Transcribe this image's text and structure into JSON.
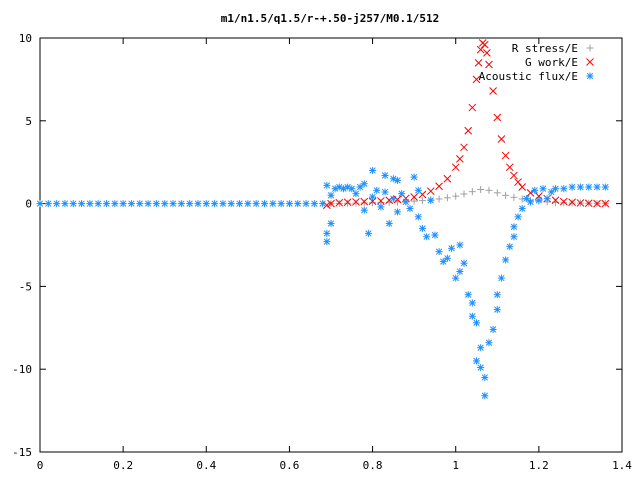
{
  "chart_data": {
    "type": "scatter",
    "title": "m1/n1.5/q1.5/r-+.50-j257/M0.1/512",
    "xlabel": "",
    "ylabel": "",
    "xlim": [
      0,
      1.4
    ],
    "ylim": [
      -15,
      10
    ],
    "x_ticks": [
      "0",
      "0.2",
      "0.4",
      "0.6",
      "0.8",
      "1",
      "1.2",
      "1.4"
    ],
    "y_ticks": [
      "10",
      "5",
      "0",
      "-5",
      "-10",
      "-15"
    ],
    "x_tick_values": [
      0,
      0.2,
      0.4,
      0.6,
      0.8,
      1.0,
      1.2,
      1.4
    ],
    "y_tick_values": [
      10,
      5,
      0,
      -5,
      -10,
      -15
    ],
    "grid": false,
    "legend_position": "top-right",
    "series": [
      {
        "name": "R stress/E",
        "marker": "plus",
        "color": "#a0a0a0",
        "points": [
          [
            0.7,
            0.0
          ],
          [
            0.72,
            0.01
          ],
          [
            0.74,
            0.02
          ],
          [
            0.76,
            0.03
          ],
          [
            0.78,
            0.04
          ],
          [
            0.8,
            0.05
          ],
          [
            0.82,
            0.06
          ],
          [
            0.84,
            0.08
          ],
          [
            0.86,
            0.1
          ],
          [
            0.88,
            0.12
          ],
          [
            0.9,
            0.15
          ],
          [
            0.92,
            0.18
          ],
          [
            0.94,
            0.22
          ],
          [
            0.96,
            0.28
          ],
          [
            0.98,
            0.35
          ],
          [
            1.0,
            0.45
          ],
          [
            1.02,
            0.58
          ],
          [
            1.04,
            0.72
          ],
          [
            1.06,
            0.85
          ],
          [
            1.08,
            0.8
          ],
          [
            1.1,
            0.65
          ],
          [
            1.12,
            0.5
          ],
          [
            1.14,
            0.38
          ],
          [
            1.16,
            0.28
          ],
          [
            1.18,
            0.2
          ],
          [
            1.2,
            0.14
          ],
          [
            1.22,
            0.1
          ],
          [
            1.24,
            0.07
          ],
          [
            1.26,
            0.05
          ],
          [
            1.28,
            0.04
          ],
          [
            1.3,
            0.03
          ],
          [
            1.32,
            0.02
          ],
          [
            1.34,
            0.01
          ],
          [
            1.36,
            0.01
          ]
        ]
      },
      {
        "name": "G work/E",
        "marker": "cross",
        "color": "#ff0000",
        "points": [
          [
            0.69,
            -0.1
          ],
          [
            0.7,
            0.0
          ],
          [
            0.72,
            0.05
          ],
          [
            0.74,
            0.08
          ],
          [
            0.76,
            0.1
          ],
          [
            0.78,
            0.12
          ],
          [
            0.8,
            0.14
          ],
          [
            0.82,
            0.16
          ],
          [
            0.84,
            0.2
          ],
          [
            0.86,
            0.25
          ],
          [
            0.88,
            0.32
          ],
          [
            0.9,
            0.4
          ],
          [
            0.92,
            0.55
          ],
          [
            0.94,
            0.75
          ],
          [
            0.96,
            1.05
          ],
          [
            0.98,
            1.5
          ],
          [
            1.0,
            2.2
          ],
          [
            1.01,
            2.7
          ],
          [
            1.02,
            3.4
          ],
          [
            1.03,
            4.4
          ],
          [
            1.04,
            5.8
          ],
          [
            1.05,
            7.5
          ],
          [
            1.055,
            8.5
          ],
          [
            1.06,
            9.3
          ],
          [
            1.065,
            9.7
          ],
          [
            1.07,
            9.6
          ],
          [
            1.075,
            9.1
          ],
          [
            1.08,
            8.4
          ],
          [
            1.09,
            6.8
          ],
          [
            1.1,
            5.2
          ],
          [
            1.11,
            3.9
          ],
          [
            1.12,
            2.9
          ],
          [
            1.13,
            2.2
          ],
          [
            1.14,
            1.7
          ],
          [
            1.15,
            1.3
          ],
          [
            1.16,
            1.0
          ],
          [
            1.18,
            0.65
          ],
          [
            1.2,
            0.45
          ],
          [
            1.22,
            0.3
          ],
          [
            1.24,
            0.2
          ],
          [
            1.26,
            0.12
          ],
          [
            1.28,
            0.08
          ],
          [
            1.3,
            0.04
          ],
          [
            1.32,
            0.02
          ],
          [
            1.34,
            0.0
          ],
          [
            1.36,
            0.0
          ]
        ]
      },
      {
        "name": "Acoustic flux/E",
        "marker": "star",
        "color": "#1e90ff",
        "points": [
          [
            0.0,
            0.0
          ],
          [
            0.02,
            0.0
          ],
          [
            0.04,
            0.0
          ],
          [
            0.06,
            0.0
          ],
          [
            0.08,
            0.0
          ],
          [
            0.1,
            0.0
          ],
          [
            0.12,
            0.0
          ],
          [
            0.14,
            0.0
          ],
          [
            0.16,
            0.0
          ],
          [
            0.18,
            0.0
          ],
          [
            0.2,
            0.0
          ],
          [
            0.22,
            0.0
          ],
          [
            0.24,
            0.0
          ],
          [
            0.26,
            0.0
          ],
          [
            0.28,
            0.0
          ],
          [
            0.3,
            0.0
          ],
          [
            0.32,
            0.0
          ],
          [
            0.34,
            0.0
          ],
          [
            0.36,
            0.0
          ],
          [
            0.38,
            0.0
          ],
          [
            0.4,
            0.0
          ],
          [
            0.42,
            0.0
          ],
          [
            0.44,
            0.0
          ],
          [
            0.46,
            0.0
          ],
          [
            0.48,
            0.0
          ],
          [
            0.5,
            0.0
          ],
          [
            0.52,
            0.0
          ],
          [
            0.54,
            0.0
          ],
          [
            0.56,
            0.0
          ],
          [
            0.58,
            0.0
          ],
          [
            0.6,
            0.0
          ],
          [
            0.62,
            0.0
          ],
          [
            0.64,
            0.0
          ],
          [
            0.66,
            0.0
          ],
          [
            0.68,
            0.0
          ],
          [
            0.69,
            1.1
          ],
          [
            0.69,
            -1.8
          ],
          [
            0.69,
            -2.3
          ],
          [
            0.7,
            0.5
          ],
          [
            0.7,
            -1.2
          ],
          [
            0.71,
            0.9
          ],
          [
            0.72,
            1.0
          ],
          [
            0.73,
            0.9
          ],
          [
            0.74,
            1.0
          ],
          [
            0.75,
            0.9
          ],
          [
            0.76,
            0.6
          ],
          [
            0.77,
            1.0
          ],
          [
            0.78,
            1.2
          ],
          [
            0.78,
            -0.4
          ],
          [
            0.79,
            -1.8
          ],
          [
            0.8,
            2.0
          ],
          [
            0.8,
            0.4
          ],
          [
            0.81,
            0.8
          ],
          [
            0.82,
            -0.2
          ],
          [
            0.83,
            1.7
          ],
          [
            0.83,
            0.7
          ],
          [
            0.84,
            -1.2
          ],
          [
            0.85,
            1.5
          ],
          [
            0.85,
            0.3
          ],
          [
            0.86,
            -0.5
          ],
          [
            0.86,
            1.4
          ],
          [
            0.87,
            0.6
          ],
          [
            0.88,
            0.1
          ],
          [
            0.89,
            -0.3
          ],
          [
            0.9,
            1.6
          ],
          [
            0.91,
            0.8
          ],
          [
            0.91,
            -0.8
          ],
          [
            0.92,
            -1.5
          ],
          [
            0.93,
            -2.0
          ],
          [
            0.94,
            0.2
          ],
          [
            0.95,
            -1.9
          ],
          [
            0.96,
            -2.9
          ],
          [
            0.97,
            -3.5
          ],
          [
            0.98,
            -3.3
          ],
          [
            0.99,
            -2.7
          ],
          [
            1.0,
            -4.5
          ],
          [
            1.01,
            -4.1
          ],
          [
            1.01,
            -2.5
          ],
          [
            1.02,
            -3.6
          ],
          [
            1.03,
            -5.5
          ],
          [
            1.04,
            -6.8
          ],
          [
            1.04,
            -6.0
          ],
          [
            1.05,
            -7.2
          ],
          [
            1.05,
            -9.5
          ],
          [
            1.06,
            -8.7
          ],
          [
            1.06,
            -9.9
          ],
          [
            1.07,
            -11.6
          ],
          [
            1.07,
            -10.5
          ],
          [
            1.08,
            -8.4
          ],
          [
            1.09,
            -7.6
          ],
          [
            1.1,
            -6.4
          ],
          [
            1.1,
            -5.5
          ],
          [
            1.11,
            -4.5
          ],
          [
            1.12,
            -3.4
          ],
          [
            1.13,
            -2.6
          ],
          [
            1.14,
            -1.4
          ],
          [
            1.14,
            -2.0
          ],
          [
            1.15,
            -0.8
          ],
          [
            1.16,
            -0.3
          ],
          [
            1.17,
            0.3
          ],
          [
            1.18,
            0.1
          ],
          [
            1.19,
            0.8
          ],
          [
            1.2,
            0.2
          ],
          [
            1.21,
            0.9
          ],
          [
            1.22,
            0.3
          ],
          [
            1.23,
            0.7
          ],
          [
            1.24,
            0.9
          ],
          [
            1.26,
            0.9
          ],
          [
            1.28,
            1.0
          ],
          [
            1.3,
            1.0
          ],
          [
            1.32,
            1.0
          ],
          [
            1.34,
            1.0
          ],
          [
            1.36,
            1.0
          ]
        ]
      }
    ]
  }
}
